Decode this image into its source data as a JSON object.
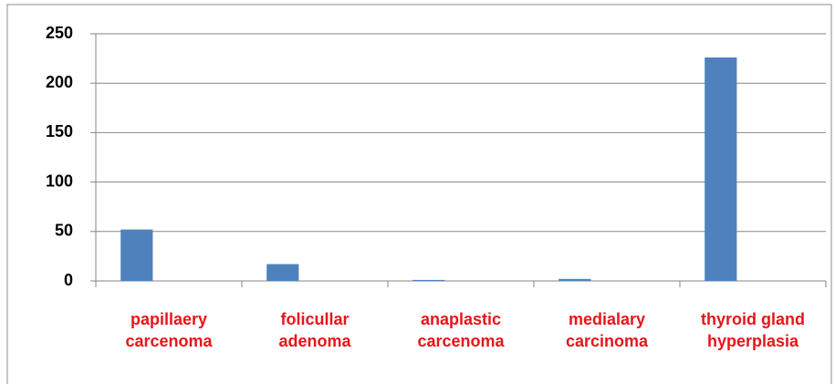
{
  "chart_data": {
    "type": "bar",
    "categories": [
      "papillaery carcenoma",
      "folicullar adenoma",
      "anaplastic carcenoma",
      "medialary carcinoma",
      "thyroid gland hyperplasia"
    ],
    "values": [
      52,
      17,
      1,
      2,
      226
    ],
    "color": "#4f81bd",
    "ylim": [
      0,
      250
    ],
    "yticks": [
      0,
      50,
      100,
      150,
      200,
      250
    ],
    "grid": true
  }
}
